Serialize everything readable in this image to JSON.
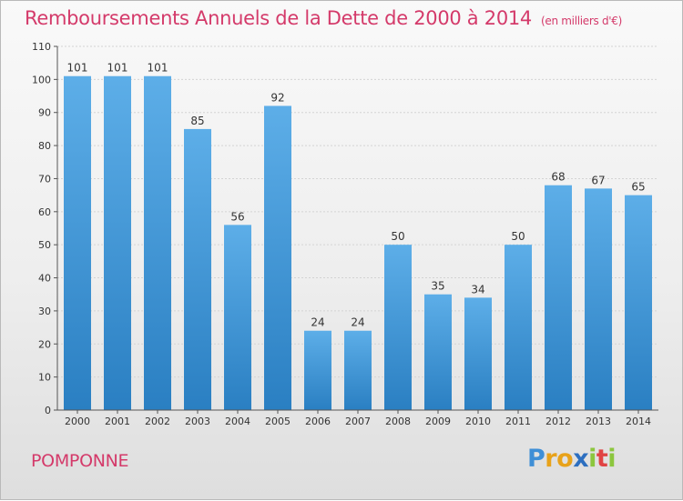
{
  "header": {
    "title": "Remboursements Annuels de la Dette de 2000 à 2014",
    "unit": "(en milliers d'€)"
  },
  "footer": {
    "commune": "POMPONNE",
    "logo": "Proxiti"
  },
  "colors": {
    "bar_light": "#5daee8",
    "bar_dark": "#2a7fc2",
    "title": "#d43a6a"
  },
  "chart_data": {
    "type": "bar",
    "title": "Remboursements Annuels de la Dette de 2000 à 2014",
    "subtitle": "(en milliers d'€)",
    "xlabel": "",
    "ylabel": "",
    "categories": [
      "2000",
      "2001",
      "2002",
      "2003",
      "2004",
      "2005",
      "2006",
      "2007",
      "2008",
      "2009",
      "2010",
      "2011",
      "2012",
      "2013",
      "2014"
    ],
    "values": [
      101,
      101,
      101,
      85,
      56,
      92,
      24,
      24,
      50,
      35,
      34,
      50,
      68,
      67,
      65
    ],
    "ylim": [
      0,
      110
    ],
    "yticks": [
      0,
      10,
      20,
      30,
      40,
      50,
      60,
      70,
      80,
      90,
      100,
      110
    ],
    "grid": true,
    "legend": "none"
  }
}
